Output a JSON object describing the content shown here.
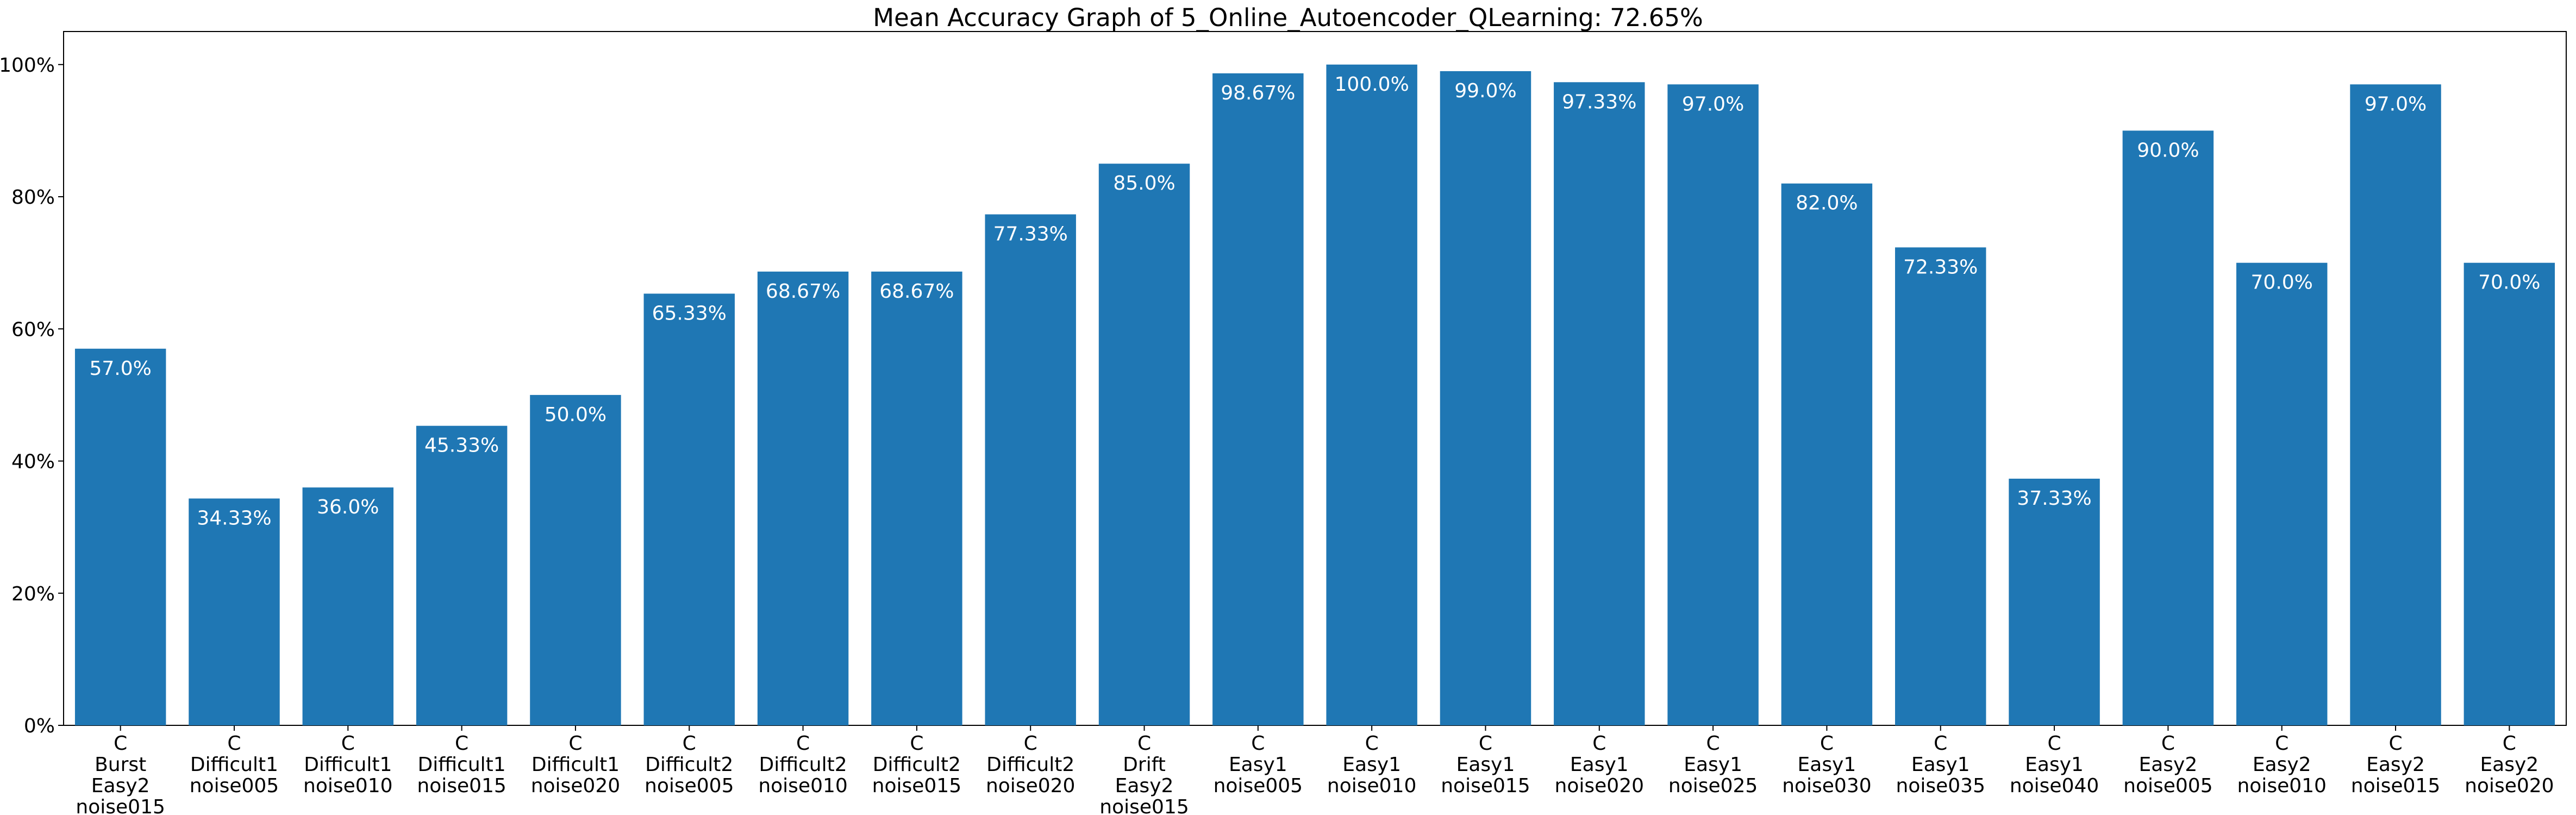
{
  "chart_data": {
    "type": "bar",
    "title": "Mean Accuracy Graph of 5_Online_Autoencoder_QLearning: 72.65%",
    "xlabel": "",
    "ylabel": "",
    "ylim": [
      0,
      105
    ],
    "yticks": [
      0,
      20,
      40,
      60,
      80,
      100
    ],
    "ytick_labels": [
      "0%",
      "20%",
      "40%",
      "60%",
      "80%",
      "100%"
    ],
    "grid": false,
    "bar_color": "#1f77b4",
    "categories": [
      [
        "C",
        "Burst",
        "Easy2",
        "noise015"
      ],
      [
        "C",
        "Difficult1",
        "noise005"
      ],
      [
        "C",
        "Difficult1",
        "noise010"
      ],
      [
        "C",
        "Difficult1",
        "noise015"
      ],
      [
        "C",
        "Difficult1",
        "noise020"
      ],
      [
        "C",
        "Difficult2",
        "noise005"
      ],
      [
        "C",
        "Difficult2",
        "noise010"
      ],
      [
        "C",
        "Difficult2",
        "noise015"
      ],
      [
        "C",
        "Difficult2",
        "noise020"
      ],
      [
        "C",
        "Drift",
        "Easy2",
        "noise015"
      ],
      [
        "C",
        "Easy1",
        "noise005"
      ],
      [
        "C",
        "Easy1",
        "noise010"
      ],
      [
        "C",
        "Easy1",
        "noise015"
      ],
      [
        "C",
        "Easy1",
        "noise020"
      ],
      [
        "C",
        "Easy1",
        "noise025"
      ],
      [
        "C",
        "Easy1",
        "noise030"
      ],
      [
        "C",
        "Easy1",
        "noise035"
      ],
      [
        "C",
        "Easy1",
        "noise040"
      ],
      [
        "C",
        "Easy2",
        "noise005"
      ],
      [
        "C",
        "Easy2",
        "noise010"
      ],
      [
        "C",
        "Easy2",
        "noise015"
      ],
      [
        "C",
        "Easy2",
        "noise020"
      ]
    ],
    "values": [
      57.0,
      34.33,
      36.0,
      45.33,
      50.0,
      65.33,
      68.67,
      68.67,
      77.33,
      85.0,
      98.67,
      100.0,
      99.0,
      97.33,
      97.0,
      82.0,
      72.33,
      37.33,
      90.0,
      70.0,
      97.0,
      70.0
    ],
    "data_labels": [
      "57.0%",
      "34.33%",
      "36.0%",
      "45.33%",
      "50.0%",
      "65.33%",
      "68.67%",
      "68.67%",
      "77.33%",
      "85.0%",
      "98.67%",
      "100.0%",
      "99.0%",
      "97.33%",
      "97.0%",
      "82.0%",
      "72.33%",
      "37.33%",
      "90.0%",
      "70.0%",
      "97.0%",
      "70.0%"
    ]
  }
}
